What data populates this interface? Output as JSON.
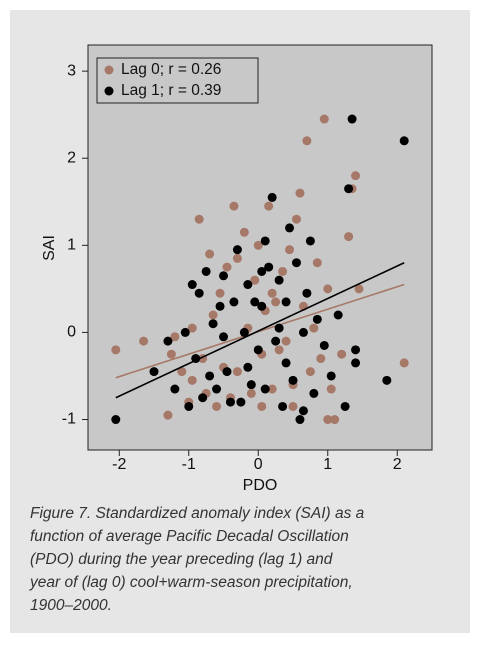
{
  "chart_data": {
    "type": "scatter",
    "x_label": "PDO",
    "y_label": "SAI",
    "xlim": [
      -2.45,
      2.5
    ],
    "ylim": [
      -1.35,
      3.3
    ],
    "xticks": [
      -2,
      -1,
      0,
      1,
      2
    ],
    "yticks": [
      -1,
      0,
      1,
      2,
      3
    ],
    "legend": "top-left",
    "series": [
      {
        "name": "Lag 0; r = 0.26",
        "color": "#a67868",
        "x": [
          -2.05,
          -1.65,
          -1.3,
          -1.25,
          -1.2,
          -1.0,
          -0.95,
          -0.85,
          -0.8,
          -0.7,
          -0.65,
          -0.6,
          -0.55,
          -0.5,
          -0.45,
          -0.4,
          -0.35,
          -0.3,
          -0.2,
          -0.15,
          -0.1,
          -0.05,
          0.0,
          0.05,
          0.1,
          0.15,
          0.2,
          0.25,
          0.3,
          0.35,
          0.4,
          0.45,
          0.5,
          0.55,
          0.6,
          0.65,
          0.7,
          0.75,
          0.8,
          0.85,
          0.9,
          0.95,
          1.0,
          1.05,
          1.1,
          1.2,
          1.3,
          1.35,
          1.4,
          1.45,
          2.1,
          -0.3,
          0.2,
          -0.75,
          1.0,
          0.5,
          -1.1,
          -0.95,
          0.05
        ],
        "values": [
          -0.2,
          -0.1,
          -0.95,
          -0.25,
          -0.05,
          -0.8,
          -0.55,
          1.3,
          -0.3,
          0.9,
          0.2,
          -0.85,
          0.45,
          -0.4,
          0.75,
          -0.75,
          1.45,
          -0.45,
          1.15,
          0.05,
          -0.7,
          0.6,
          1.0,
          -0.85,
          0.25,
          1.45,
          -0.65,
          0.35,
          -0.2,
          0.7,
          -0.1,
          0.95,
          -0.85,
          1.3,
          1.6,
          0.3,
          2.2,
          -0.45,
          0.05,
          0.8,
          -0.3,
          2.45,
          0.5,
          -0.65,
          -1.0,
          -0.25,
          1.1,
          1.65,
          1.8,
          0.5,
          -0.35,
          0.85,
          0.45,
          -0.7,
          -1.0,
          -0.6,
          -0.45,
          0.05,
          -0.25
        ],
        "fit_x": [
          -2.05,
          2.1
        ],
        "fit_y": [
          -0.52,
          0.55
        ]
      },
      {
        "name": "Lag 1; r = 0.39",
        "color": "#000000",
        "x": [
          -2.05,
          -1.5,
          -1.3,
          -1.2,
          -1.05,
          -1.0,
          -0.95,
          -0.9,
          -0.85,
          -0.75,
          -0.7,
          -0.65,
          -0.6,
          -0.55,
          -0.5,
          -0.45,
          -0.4,
          -0.35,
          -0.3,
          -0.25,
          -0.2,
          -0.15,
          -0.1,
          -0.05,
          0.0,
          0.05,
          0.1,
          0.15,
          0.2,
          0.25,
          0.3,
          0.35,
          0.4,
          0.45,
          0.5,
          0.55,
          0.6,
          0.65,
          0.7,
          0.75,
          0.8,
          0.85,
          0.95,
          1.05,
          1.15,
          1.25,
          1.3,
          1.35,
          1.4,
          1.4,
          1.85,
          2.1,
          0.1,
          0.05,
          -0.15,
          -0.5,
          0.4,
          0.65,
          -0.8,
          0.3
        ],
        "values": [
          -1.0,
          -0.45,
          -0.1,
          -0.65,
          0.0,
          -0.85,
          0.55,
          -0.3,
          0.45,
          0.7,
          -0.5,
          0.1,
          -0.65,
          0.3,
          0.65,
          -0.45,
          -0.8,
          0.35,
          0.95,
          -0.8,
          0.0,
          0.55,
          -0.6,
          0.35,
          -0.2,
          0.3,
          -0.65,
          0.75,
          1.55,
          -0.1,
          0.6,
          -0.85,
          0.35,
          1.2,
          -0.55,
          0.8,
          -1.0,
          0.0,
          0.45,
          1.05,
          -0.7,
          0.15,
          -0.15,
          -0.5,
          0.2,
          -0.85,
          1.65,
          2.45,
          -0.2,
          -0.35,
          -0.55,
          2.2,
          1.05,
          0.7,
          -0.4,
          -0.05,
          -0.35,
          -0.9,
          -0.75,
          0.05
        ],
        "fit_x": [
          -2.05,
          2.1
        ],
        "fit_y": [
          -0.75,
          0.8
        ]
      }
    ]
  },
  "caption": [
    "Figure 7. Standardized anomaly index (SAI) as a",
    "function of average Pacific Decadal Oscillation",
    "(PDO) during the year preceding (lag 1) and",
    "year of (lag 0) cool+warm-season precipitation,",
    "1900–2000."
  ]
}
